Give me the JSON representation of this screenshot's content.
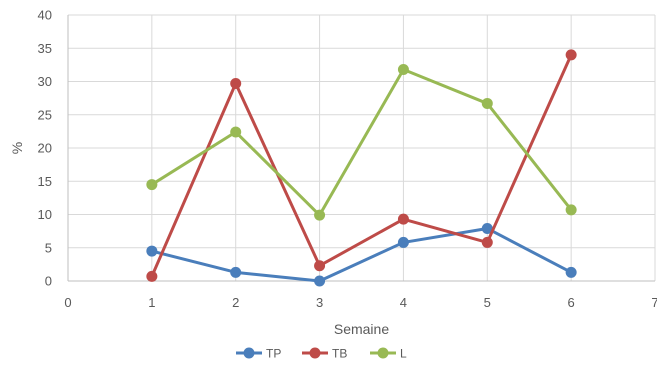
{
  "chart_data": {
    "type": "scatter",
    "mode": "lines+markers",
    "title": "",
    "xlabel": "Semaine",
    "ylabel": "%",
    "xlim": [
      0,
      7
    ],
    "ylim": [
      0,
      40
    ],
    "xticks": [
      0,
      1,
      2,
      3,
      4,
      5,
      6,
      7
    ],
    "yticks": [
      0,
      5,
      10,
      15,
      20,
      25,
      30,
      35,
      40
    ],
    "grid": true,
    "legend_position": "bottom-center",
    "x": [
      1,
      2,
      3,
      4,
      5,
      6
    ],
    "series": [
      {
        "name": "TP",
        "color": "#4a7ebb",
        "values": [
          4.5,
          1.3,
          0.0,
          5.8,
          7.9,
          1.3
        ]
      },
      {
        "name": "TB",
        "color": "#be4b48",
        "values": [
          0.7,
          29.7,
          2.3,
          9.3,
          5.8,
          34.0
        ]
      },
      {
        "name": "L",
        "color": "#98b954",
        "values": [
          14.5,
          22.4,
          9.9,
          31.8,
          26.7,
          10.7
        ]
      }
    ]
  }
}
